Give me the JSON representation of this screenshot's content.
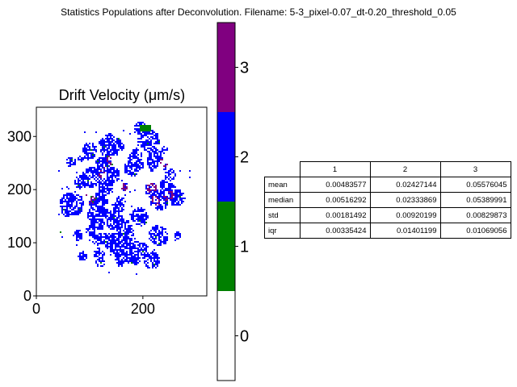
{
  "figure_title": "Statistics Populations after Deconvolution. Filename: 5-3_pixel-0.07_dt-0.20_threshold_0.05",
  "chart_data": [
    {
      "type": "heatmap",
      "title": "Drift Velocity (μm/s)",
      "xlabel": "",
      "ylabel": "",
      "xlim": [
        0,
        320
      ],
      "ylim": [
        0,
        355
      ],
      "x_ticks": [
        0,
        200
      ],
      "y_ticks": [
        0,
        100,
        200,
        300
      ],
      "grid": false,
      "populations": [
        {
          "label": "0",
          "color": "#ffffff"
        },
        {
          "label": "1",
          "color": "#008000"
        },
        {
          "label": "2",
          "color": "#0000ff"
        },
        {
          "label": "3",
          "color": "#800080"
        }
      ],
      "colorbar": {
        "range": [
          -0.5,
          3.5
        ],
        "ticks": [
          0,
          1,
          2,
          3
        ],
        "colors": [
          "#ffffff",
          "#008000",
          "#0000ff",
          "#800080"
        ]
      }
    },
    {
      "type": "table",
      "columns": [
        "1",
        "2",
        "3"
      ],
      "rows": [
        {
          "label": "mean",
          "values": [
            "0.00483577",
            "0.02427144",
            "0.05576045"
          ]
        },
        {
          "label": "median",
          "values": [
            "0.00516292",
            "0.02333869",
            "0.05389991"
          ]
        },
        {
          "label": "std",
          "values": [
            "0.00181492",
            "0.00920199",
            "0.00829873"
          ]
        },
        {
          "label": "iqr",
          "values": [
            "0.00335424",
            "0.01401199",
            "0.01069056"
          ]
        }
      ]
    }
  ]
}
